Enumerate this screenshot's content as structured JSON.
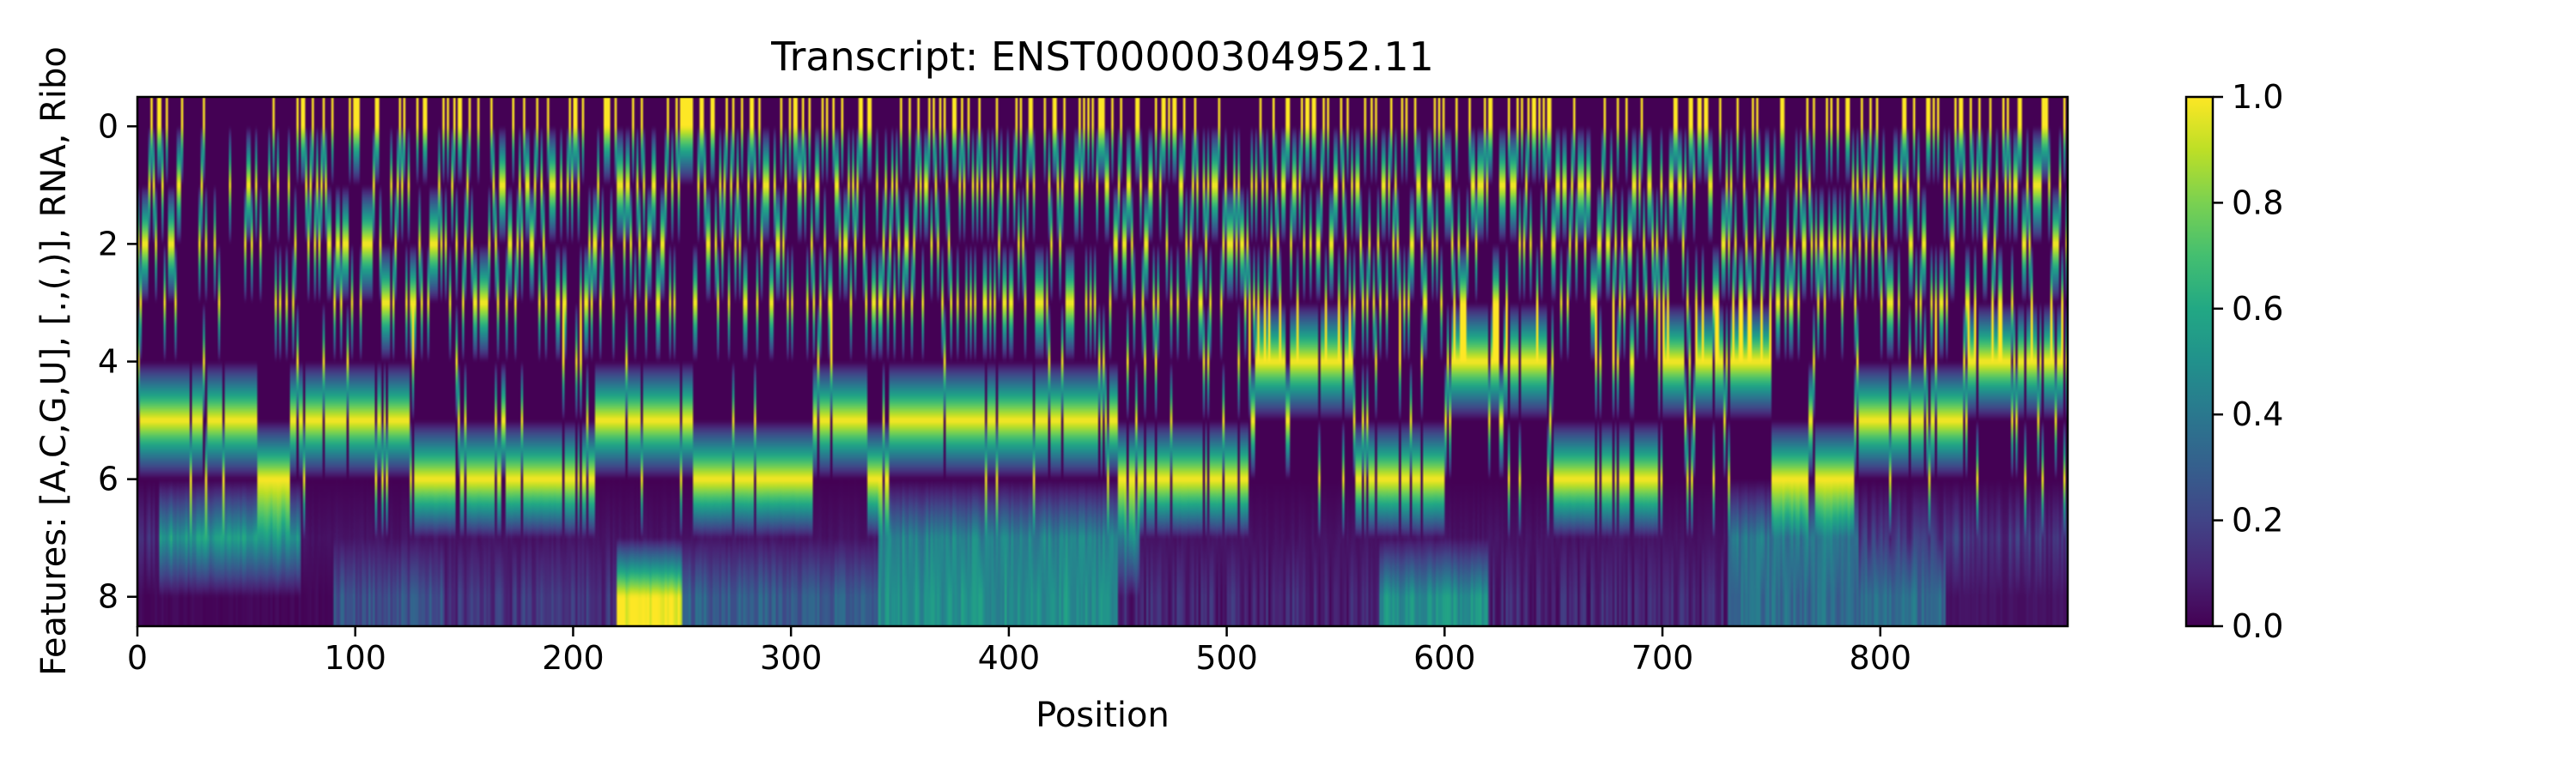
{
  "chart_data": {
    "type": "heatmap",
    "title": "Transcript: ENST00000304952.11",
    "xlabel": "Position",
    "ylabel": "Features: [A,C,G,U], [.,(,)], RNA, Ribo",
    "x_ticks": [
      0,
      100,
      200,
      300,
      400,
      500,
      600,
      700,
      800
    ],
    "y_ticks": [
      0,
      2,
      4,
      6,
      8
    ],
    "xlim": [
      0,
      886
    ],
    "ylim": [
      8.5,
      -0.5
    ],
    "n_positions": 886,
    "rows": [
      {
        "index": 0,
        "kind": "one-hot",
        "typical_value": 0.25
      },
      {
        "index": 1,
        "kind": "one-hot",
        "typical_value": 0.25
      },
      {
        "index": 2,
        "kind": "one-hot",
        "typical_value": 0.25
      },
      {
        "index": 3,
        "kind": "one-hot",
        "typical_value": 0.25
      },
      {
        "index": 4,
        "kind": "one-hot",
        "typical_value": 0.33
      },
      {
        "index": 5,
        "kind": "one-hot",
        "typical_value": 0.33
      },
      {
        "index": 6,
        "kind": "one-hot",
        "typical_value": 0.33
      },
      {
        "index": 7,
        "kind": "continuous",
        "segments": [
          {
            "x": [
              0,
              10
            ],
            "value": 0.15
          },
          {
            "x": [
              10,
              75
            ],
            "value": 0.55
          },
          {
            "x": [
              75,
              340
            ],
            "value": 0.05
          },
          {
            "x": [
              340,
              460
            ],
            "value": 0.45
          },
          {
            "x": [
              460,
              730
            ],
            "value": 0.05
          },
          {
            "x": [
              730,
              790
            ],
            "value": 0.4
          },
          {
            "x": [
              790,
              886
            ],
            "value": 0.15
          }
        ]
      },
      {
        "index": 8,
        "kind": "continuous",
        "segments": [
          {
            "x": [
              0,
              90
            ],
            "value": 0.02
          },
          {
            "x": [
              90,
              140
            ],
            "value": 0.25
          },
          {
            "x": [
              140,
              220
            ],
            "value": 0.15
          },
          {
            "x": [
              220,
              250
            ],
            "value": 1.0
          },
          {
            "x": [
              250,
              340
            ],
            "value": 0.3
          },
          {
            "x": [
              340,
              450
            ],
            "value": 0.5
          },
          {
            "x": [
              450,
              570
            ],
            "value": 0.1
          },
          {
            "x": [
              570,
              620
            ],
            "value": 0.5
          },
          {
            "x": [
              620,
              730
            ],
            "value": 0.1
          },
          {
            "x": [
              730,
              830
            ],
            "value": 0.35
          },
          {
            "x": [
              830,
              886
            ],
            "value": 0.05
          }
        ]
      }
    ],
    "colorbar": {
      "colormap": "viridis",
      "range": [
        0.0,
        1.0
      ],
      "ticks": [
        0.0,
        0.2,
        0.4,
        0.6,
        0.8,
        1.0
      ],
      "tick_labels": [
        "0.0",
        "0.2",
        "0.4",
        "0.6",
        "0.8",
        "1.0"
      ],
      "placement": "right"
    },
    "grid": false,
    "colors": {
      "low": "#440154",
      "high": "#fde725",
      "axis": "#000000"
    }
  }
}
